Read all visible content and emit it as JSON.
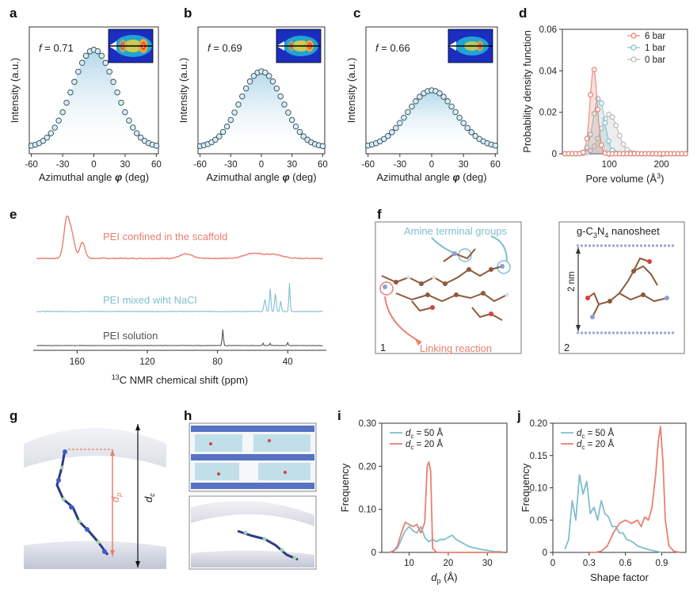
{
  "panel_letters": {
    "a": "a",
    "b": "b",
    "c": "c",
    "d": "d",
    "e": "e",
    "f": "f",
    "g": "g",
    "h": "h",
    "i": "i",
    "j": "j"
  },
  "colors": {
    "blue": "#7fbfce",
    "red": "#e8806f",
    "grey": "#b8b8b8",
    "dark": "#555555",
    "fill_blue": "#cfe6f0"
  },
  "chart_data": [
    {
      "id": "a",
      "type": "scatter",
      "title": "",
      "annotation": "f = 0.71",
      "annotation_pre": "f",
      "annotation_post": " = 0.71",
      "xlabel": "Azimuthal angle φ (deg)",
      "xlabel_pre": "Azimuthal angle ",
      "xlabel_sym": "φ",
      "xlabel_post": " (deg)",
      "ylabel": "Intensity (a.u.)",
      "xlim": [
        -62,
        62
      ],
      "xticks": [
        "-60",
        "-30",
        "0",
        "30",
        "60"
      ],
      "xtick_values": [
        -60,
        -30,
        0,
        30,
        60
      ],
      "gaussian": {
        "amplitude": 0.77,
        "sigma": 21,
        "baseline": 0.05
      }
    },
    {
      "id": "b",
      "type": "scatter",
      "annotation": "f = 0.69",
      "annotation_pre": "f",
      "annotation_post": " = 0.69",
      "xlabel": "Azimuthal angle φ (deg)",
      "xlabel_pre": "Azimuthal angle ",
      "xlabel_sym": "φ",
      "xlabel_post": " (deg)",
      "ylabel": "Intensity (a.u.)",
      "xlim": [
        -62,
        62
      ],
      "xticks": [
        "-60",
        "-30",
        "0",
        "30",
        "60"
      ],
      "xtick_values": [
        -60,
        -30,
        0,
        30,
        60
      ],
      "gaussian": {
        "amplitude": 0.6,
        "sigma": 21,
        "baseline": 0.05
      }
    },
    {
      "id": "c",
      "type": "scatter",
      "annotation": "f = 0.66",
      "annotation_pre": "f",
      "annotation_post": " = 0.66",
      "xlabel": "Azimuthal angle φ (deg)",
      "xlabel_pre": "Azimuthal angle ",
      "xlabel_sym": "φ",
      "xlabel_post": " (deg)",
      "ylabel": "Intensity (a.u.)",
      "xlim": [
        -62,
        62
      ],
      "xticks": [
        "-60",
        "-30",
        "0",
        "30",
        "60"
      ],
      "xtick_values": [
        -60,
        -30,
        0,
        30,
        60
      ],
      "gaussian": {
        "amplitude": 0.45,
        "sigma": 23,
        "baseline": 0.05
      }
    },
    {
      "id": "d",
      "type": "line",
      "xlabel": "Pore volume (Å³)",
      "xlabel_pre": "Pore volume (Å",
      "xlabel_sup": "3",
      "xlabel_post": ")",
      "ylabel": "Probability density function",
      "xlim": [
        10,
        250
      ],
      "ylim": [
        0,
        0.06
      ],
      "xticks": [
        "100",
        "200"
      ],
      "xtick_values": [
        100,
        200
      ],
      "yticks": [
        "0",
        "0.02",
        "0.04",
        "0.06"
      ],
      "ytick_values": [
        0,
        0.02,
        0.04,
        0.06
      ],
      "legend_position": "top-right",
      "series": [
        {
          "name": "6 bar",
          "color": "#e8806f",
          "peak_x": 70,
          "sigma": 7,
          "peak_y": 0.041
        },
        {
          "name": "1 bar",
          "color": "#7fbfce",
          "peak_x": 80,
          "sigma": 11,
          "peak_y": 0.027
        },
        {
          "name": "0 bar",
          "color": "#b8b8b8",
          "peak_x": 100,
          "sigma": 16,
          "peak_y": 0.019
        }
      ]
    },
    {
      "id": "e",
      "type": "line",
      "xlabel": "13C NMR chemical shift (ppm)",
      "xlabel_sup": "13",
      "xlabel_post": "C NMR chemical shift (ppm)",
      "xlim": [
        185,
        18
      ],
      "xticks": [
        "160",
        "120",
        "80",
        "40"
      ],
      "xtick_values": [
        160,
        120,
        80,
        40
      ],
      "series": [
        {
          "name": "PEI confined in the scaffold",
          "color": "#e8806f",
          "peaks": [
            [
              166,
              14,
              1.6
            ],
            [
              163,
              8,
              1.6
            ],
            [
              157,
              6,
              1.5
            ],
            [
              98,
              1.6,
              3.5
            ],
            [
              60,
              1.8,
              5
            ],
            [
              48,
              1.4,
              5
            ]
          ]
        },
        {
          "name": "PEI mixed wiht NaCl",
          "color": "#7fbfce",
          "peaks": [
            [
              53,
              3.5,
              0.5
            ],
            [
              50,
              6.5,
              0.4
            ],
            [
              47,
              5,
              0.45
            ],
            [
              44,
              3,
              0.4
            ],
            [
              39,
              8,
              0.35
            ]
          ]
        },
        {
          "name": "PEI solution",
          "color": "#555555",
          "peaks": [
            [
              77,
              8,
              0.35
            ],
            [
              54,
              1.2,
              0.3
            ],
            [
              50,
              1.0,
              0.3
            ],
            [
              40,
              1.4,
              0.3
            ]
          ]
        }
      ]
    },
    {
      "id": "i",
      "type": "line",
      "xlabel": "dp (Å)",
      "xlabel_main": "d",
      "xlabel_sub": "p",
      "xlabel_post": " (Å)",
      "ylabel": "Frequency",
      "xlim": [
        3,
        35
      ],
      "ylim": [
        0,
        0.3
      ],
      "xticks": [
        "10",
        "20",
        "30"
      ],
      "xtick_values": [
        10,
        20,
        30
      ],
      "yticks": [
        "0",
        "0.10",
        "0.20",
        "0.30"
      ],
      "ytick_values": [
        0,
        0.1,
        0.2,
        0.3
      ],
      "legend_position": "top-left",
      "series": [
        {
          "name": "dc = 50 Å",
          "name_main": "d",
          "name_sub": "c",
          "name_post": " = 50 Å",
          "color": "#7fbfce",
          "x": [
            5,
            6,
            7,
            8,
            9,
            10,
            11,
            12,
            13,
            14,
            15,
            16,
            17,
            18,
            19,
            20,
            21,
            22,
            23,
            24,
            25,
            26,
            27,
            28,
            29,
            30,
            31,
            32,
            33,
            34
          ],
          "y": [
            0,
            0.004,
            0.01,
            0.03,
            0.05,
            0.06,
            0.05,
            0.045,
            0.06,
            0.035,
            0.025,
            0.03,
            0.025,
            0.03,
            0.03,
            0.035,
            0.04,
            0.03,
            0.025,
            0.02,
            0.015,
            0.012,
            0.01,
            0.008,
            0.006,
            0.005,
            0.003,
            0.002,
            0.002,
            0.001
          ]
        },
        {
          "name": "dc = 20 Å",
          "name_main": "d",
          "name_sub": "c",
          "name_post": " = 20 Å",
          "color": "#e8806f",
          "x": [
            5,
            6,
            7,
            8,
            9,
            10,
            11,
            12,
            13,
            14,
            14.6,
            15,
            15.5,
            16,
            17,
            18,
            19,
            20,
            22,
            24,
            26,
            28,
            30,
            32,
            34
          ],
          "y": [
            0,
            0.003,
            0.015,
            0.045,
            0.07,
            0.065,
            0.06,
            0.065,
            0.045,
            0.07,
            0.2,
            0.21,
            0.19,
            0.01,
            0,
            0,
            0,
            0,
            0,
            0,
            0,
            0,
            0,
            0,
            0
          ]
        }
      ]
    },
    {
      "id": "j",
      "type": "line",
      "xlabel": "Shape factor",
      "ylabel": "Frequency",
      "xlim": [
        0,
        1.1
      ],
      "ylim": [
        0,
        0.2
      ],
      "xticks": [
        "0",
        "0.3",
        "0.6",
        "0.9"
      ],
      "xtick_values": [
        0,
        0.3,
        0.6,
        0.9
      ],
      "yticks": [
        "0",
        "0.05",
        "0.10",
        "0.15",
        "0.20"
      ],
      "ytick_values": [
        0,
        0.05,
        0.1,
        0.15,
        0.2
      ],
      "legend_position": "top-left",
      "series": [
        {
          "name": "dc = 50 Å",
          "name_main": "d",
          "name_sub": "c",
          "name_post": " = 50 Å",
          "color": "#7fbfce",
          "x": [
            0.1,
            0.13,
            0.16,
            0.19,
            0.22,
            0.25,
            0.28,
            0.31,
            0.34,
            0.37,
            0.4,
            0.43,
            0.46,
            0.49,
            0.52,
            0.55,
            0.58,
            0.61,
            0.64,
            0.67,
            0.7,
            0.73,
            0.76,
            0.8,
            0.85,
            0.9
          ],
          "y": [
            0.005,
            0.02,
            0.08,
            0.05,
            0.12,
            0.09,
            0.11,
            0.06,
            0.07,
            0.05,
            0.08,
            0.06,
            0.055,
            0.04,
            0.04,
            0.03,
            0.03,
            0.02,
            0.018,
            0.015,
            0.01,
            0.008,
            0.006,
            0.004,
            0.002,
            0
          ]
        },
        {
          "name": "dc = 20 Å",
          "name_main": "d",
          "name_sub": "c",
          "name_post": " = 20 Å",
          "color": "#e8806f",
          "x": [
            0.3,
            0.35,
            0.4,
            0.45,
            0.5,
            0.55,
            0.6,
            0.65,
            0.7,
            0.73,
            0.76,
            0.79,
            0.82,
            0.85,
            0.87,
            0.89,
            0.91,
            0.93,
            0.96,
            1.0,
            1.05
          ],
          "y": [
            0,
            0,
            0.002,
            0.01,
            0.03,
            0.045,
            0.05,
            0.045,
            0.05,
            0.04,
            0.055,
            0.05,
            0.07,
            0.12,
            0.17,
            0.195,
            0.14,
            0.05,
            0.01,
            0.002,
            0
          ]
        }
      ]
    }
  ],
  "panel_f": {
    "box1_label": "Amine terminal groups",
    "box1_link": "Linking reaction",
    "box1_number": "1",
    "box2_title": "g-C3N4 nanosheet",
    "box2_title_pre": "g-C",
    "box2_sub1": "3",
    "box2_mid": "N",
    "box2_sub2": "4",
    "box2_post": " nanosheet",
    "box2_scale": "2 nm",
    "box2_number": "2"
  },
  "panel_g": {
    "dp_main": "d",
    "dp_sub": "p",
    "dc_main": "d",
    "dc_sub": "c"
  }
}
